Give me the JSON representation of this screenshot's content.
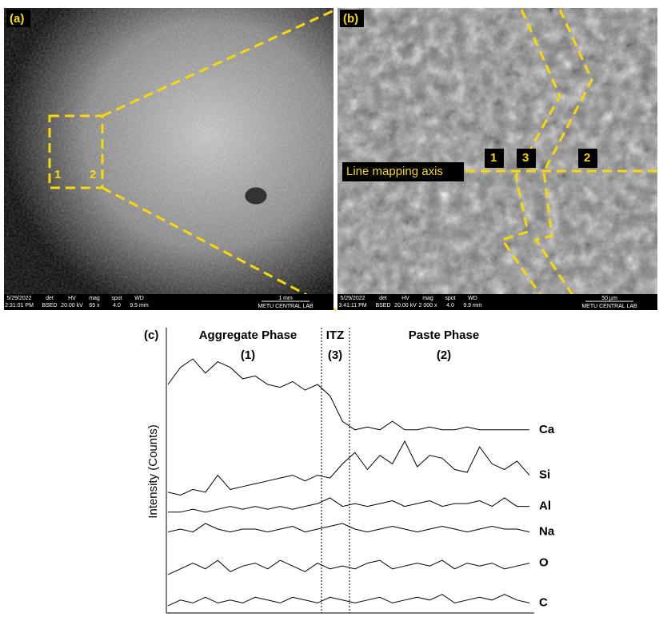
{
  "panels": {
    "a": {
      "label": "(a)",
      "box_labels": [
        "1",
        "2"
      ],
      "info": [
        [
          "5/29/2022",
          "2:31:01 PM"
        ],
        [
          "det",
          "BSED"
        ],
        [
          "HV",
          "20.00 kV"
        ],
        [
          "mag",
          "65 x"
        ],
        [
          "spot",
          "4.0"
        ],
        [
          "WD",
          "9.5 mm"
        ]
      ],
      "scale": "1 mm",
      "lab": "METU CENTRAL LAB"
    },
    "b": {
      "label": "(b)",
      "zone_labels": [
        "1",
        "3",
        "2"
      ],
      "axis_label": "Line mapping axis",
      "info": [
        [
          "5/29/2022",
          "3:41:11 PM"
        ],
        [
          "det",
          "BSED"
        ],
        [
          "HV",
          "20.00 kV"
        ],
        [
          "mag",
          "2 000 x"
        ],
        [
          "spot",
          "4.0"
        ],
        [
          "WD",
          "9.9 mm"
        ]
      ],
      "scale": "50 µm",
      "lab": "METU CENTRAL LAB"
    },
    "c": {
      "label": "(c)"
    }
  },
  "chart_data": {
    "type": "line",
    "ylabel": "Intensity (Counts)",
    "phases": [
      {
        "name": "Aggregate Phase",
        "number": "(1)"
      },
      {
        "name": "ITZ",
        "number": "(3)"
      },
      {
        "name": "Paste Phase",
        "number": "(2)"
      }
    ],
    "x": [
      0,
      1,
      2,
      3,
      4,
      5,
      6,
      7,
      8,
      9,
      10,
      11,
      12,
      13,
      14,
      15,
      16,
      17,
      18,
      19,
      20,
      21,
      22,
      23,
      24,
      25,
      26,
      27,
      28,
      29
    ],
    "xlim": [
      0,
      29
    ],
    "ylim": [
      0,
      100
    ],
    "series": [
      {
        "name": "Ca",
        "color": "#000000",
        "values": [
          80,
          86,
          89,
          84,
          88,
          86,
          82,
          83,
          80,
          79,
          81,
          78,
          80,
          76,
          67,
          64,
          65,
          64,
          67,
          64,
          64,
          65,
          64,
          64,
          65,
          64,
          64,
          64,
          64,
          64
        ]
      },
      {
        "name": "Si",
        "color": "#000000",
        "values": [
          42,
          41,
          43,
          42,
          48,
          43,
          44,
          45,
          46,
          47,
          48,
          46,
          48,
          47,
          52,
          56,
          50,
          55,
          52,
          60,
          51,
          55,
          54,
          50,
          49,
          58,
          52,
          50,
          53,
          48
        ]
      },
      {
        "name": "Al",
        "color": "#000000",
        "values": [
          35,
          35,
          36,
          35,
          36,
          37,
          36,
          37,
          36,
          37,
          36,
          37,
          38,
          40,
          37,
          38,
          37,
          38,
          39,
          37,
          38,
          39,
          37,
          38,
          38,
          39,
          37,
          40,
          37,
          37
        ]
      },
      {
        "name": "Na",
        "color": "#000000",
        "values": [
          28,
          29,
          28,
          31,
          29,
          28,
          29,
          29,
          28,
          29,
          30,
          28,
          29,
          30,
          31,
          29,
          28,
          29,
          30,
          29,
          28,
          29,
          30,
          29,
          28,
          29,
          30,
          29,
          29,
          28
        ]
      },
      {
        "name": "O",
        "color": "#000000",
        "values": [
          13,
          15,
          17,
          15,
          18,
          14,
          16,
          17,
          15,
          18,
          16,
          14,
          17,
          15,
          16,
          15,
          17,
          18,
          15,
          16,
          17,
          16,
          18,
          15,
          17,
          16,
          17,
          15,
          16,
          17
        ]
      },
      {
        "name": "C",
        "color": "#000000",
        "values": [
          2,
          4,
          3,
          5,
          3,
          4,
          3,
          5,
          4,
          3,
          5,
          4,
          3,
          5,
          4,
          3,
          4,
          5,
          3,
          4,
          5,
          4,
          6,
          3,
          4,
          5,
          4,
          6,
          4,
          3
        ]
      }
    ]
  }
}
